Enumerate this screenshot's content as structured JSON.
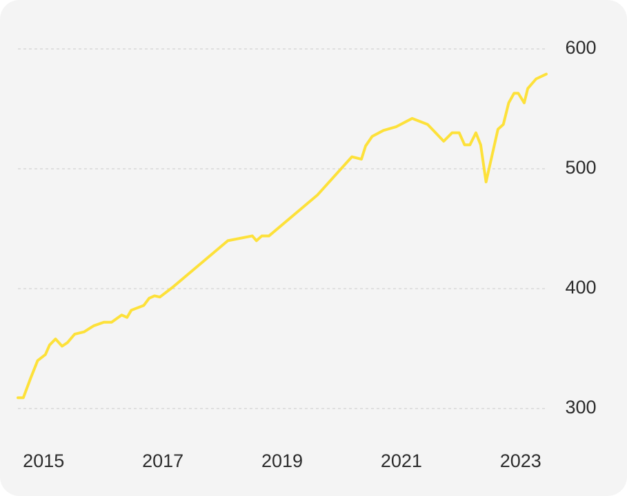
{
  "chart_data": {
    "type": "line",
    "x": [
      2014.57,
      2014.66,
      2014.78,
      2014.9,
      2015.03,
      2015.1,
      2015.2,
      2015.31,
      2015.4,
      2015.52,
      2015.68,
      2015.84,
      2016.01,
      2016.14,
      2016.31,
      2016.4,
      2016.47,
      2016.68,
      2016.77,
      2016.86,
      2016.95,
      2017.16,
      2018.09,
      2018.5,
      2018.57,
      2018.66,
      2018.78,
      2019.59,
      2020.17,
      2020.33,
      2020.4,
      2020.51,
      2020.7,
      2020.91,
      2021.18,
      2021.44,
      2021.71,
      2021.85,
      2021.97,
      2022.06,
      2022.15,
      2022.25,
      2022.33,
      2022.42,
      2022.62,
      2022.71,
      2022.8,
      2022.89,
      2022.96,
      2023.06,
      2023.12,
      2023.26,
      2023.43
    ],
    "series": [
      {
        "color": "#fde13a",
        "values": [
          309,
          309,
          325,
          340,
          345,
          353,
          358,
          352,
          355,
          362,
          364,
          369,
          372,
          372,
          378,
          376,
          382,
          386,
          392,
          394,
          393,
          401,
          440,
          444,
          440,
          444,
          444,
          478,
          510,
          508,
          519,
          527,
          532,
          535,
          542,
          537,
          523,
          530,
          530,
          520,
          520,
          530,
          520,
          489,
          533,
          537,
          555,
          563,
          563,
          555,
          567,
          575,
          579
        ]
      }
    ],
    "xlim": [
      2014.5,
      2023.5
    ],
    "xticks": [
      2015,
      2017,
      2019,
      2021,
      2023
    ],
    "ylim": [
      300,
      600
    ],
    "yticks": [
      300,
      400,
      500,
      600
    ],
    "grid": true
  }
}
